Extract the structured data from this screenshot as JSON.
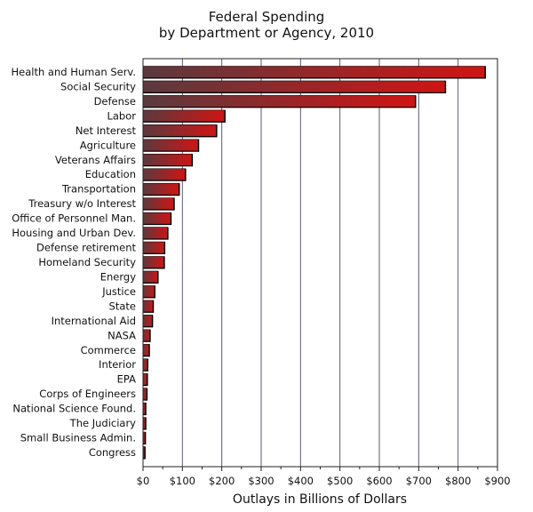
{
  "chart_data": {
    "type": "bar",
    "orientation": "horizontal",
    "title": "Federal Spending",
    "subtitle": "by Department or Agency, 2010",
    "xlabel": "Outlays in Billions of Dollars",
    "ylabel": "",
    "xlim": [
      0,
      900
    ],
    "x_ticks": [
      0,
      100,
      200,
      300,
      400,
      500,
      600,
      700,
      800,
      900
    ],
    "x_tick_labels": [
      "$0",
      "$100",
      "$200",
      "$300",
      "$400",
      "$500",
      "$600",
      "$700",
      "$800",
      "$900"
    ],
    "grid": "vertical",
    "legend": "none",
    "colors": {
      "bar_start": "#5a3a3e",
      "bar_end": "#d01414",
      "bar_edge": "#1a0000",
      "grid": "#5a5a78"
    },
    "categories": [
      "Health and Human Serv.",
      "Social Security",
      "Defense",
      "Labor",
      "Net Interest",
      "Agriculture",
      "Veterans Affairs",
      "Education",
      "Transportation",
      "Treasury w/o Interest",
      "Office of Personnel Man.",
      "Housing and Urban Dev.",
      "Defense retirement",
      "Homeland Security",
      "Energy",
      "Justice",
      "State",
      "International Aid",
      "NASA",
      "Commerce",
      "Interior",
      "EPA",
      "Corps of Engineers",
      "National Science Found.",
      "The Judiciary",
      "Small Business Admin.",
      "Congress"
    ],
    "values": [
      869,
      768,
      692,
      208,
      187,
      141,
      125,
      108,
      92,
      79,
      71,
      63,
      55,
      54,
      38,
      30,
      26,
      24,
      18,
      16,
      12,
      11,
      10,
      7,
      7,
      6,
      5
    ]
  }
}
